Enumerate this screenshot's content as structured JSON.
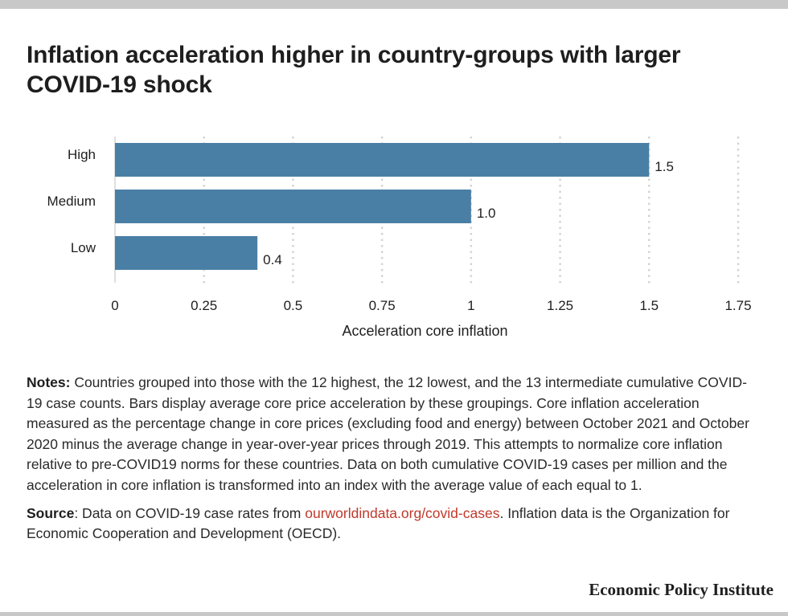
{
  "title": "Inflation acceleration higher in country-groups with larger COVID-19 shock",
  "chart_data": {
    "type": "bar",
    "orientation": "horizontal",
    "categories": [
      "High",
      "Medium",
      "Low"
    ],
    "values": [
      1.5,
      1.0,
      0.4
    ],
    "value_labels": [
      "1.5",
      "1.0",
      "0.4"
    ],
    "xlabel": "Acceleration core inflation",
    "ylabel": "",
    "xlim": [
      0,
      1.75
    ],
    "xticks": [
      0,
      0.25,
      0.5,
      0.75,
      1,
      1.25,
      1.5,
      1.75
    ],
    "xtick_labels": [
      "0",
      "0.25",
      "0.5",
      "0.75",
      "1",
      "1.25",
      "1.5",
      "1.75"
    ],
    "grid": "vertical dotted",
    "bar_color": "#4a7fa5"
  },
  "notes": {
    "label": "Notes:",
    "text": " Countries grouped into those with the 12 highest, the 12 lowest, and the 13 intermediate cumulative COVID-19 case counts. Bars display average core price acceleration by these groupings. Core inflation acceleration measured as the percentage change in core prices (excluding food and energy) between October 2021 and October 2020 minus the average change in year-over-year prices through 2019. This attempts to normalize core inflation relative to pre-COVID19 norms for these countries. Data on both cumulative COVID-19 cases per million and the acceleration in core inflation is transformed into an index with the average value of each equal to 1."
  },
  "source": {
    "label": "Source",
    "text_before": ": Data on COVID-19 case rates from ",
    "link_text": "ourworldindata.org/covid-cases",
    "text_after": ". Inflation data is the Organization for Economic Cooperation and Development (OECD).",
    "link_color": "#c0392b"
  },
  "brand": "Economic Policy Institute"
}
